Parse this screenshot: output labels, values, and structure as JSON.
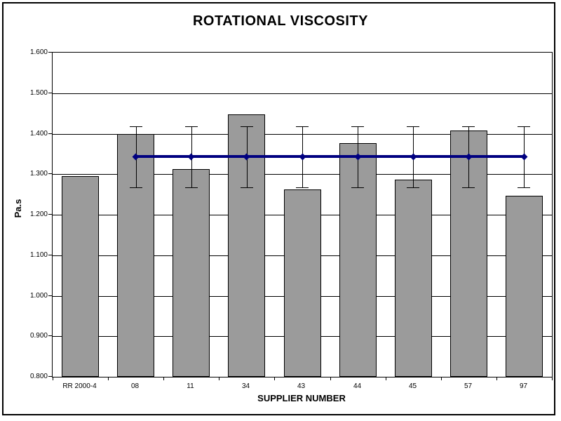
{
  "chart_data": {
    "type": "bar",
    "title": "ROTATIONAL VISCOSITY",
    "xlabel": "SUPPLIER NUMBER",
    "ylabel": "Pa.s",
    "categories": [
      "RR 2000-4",
      "08",
      "11",
      "34",
      "43",
      "44",
      "45",
      "57",
      "97"
    ],
    "values": [
      1.296,
      1.4,
      1.312,
      1.448,
      1.262,
      1.377,
      1.286,
      1.408,
      1.247
    ],
    "ylim": [
      0.8,
      1.6
    ],
    "y_ticks": [
      1.6,
      1.5,
      1.4,
      1.3,
      1.2,
      1.1,
      1.0,
      0.9,
      0.8
    ],
    "y_tick_labels": [
      "1.600",
      "1.500",
      "1.400",
      "1.300",
      "1.200",
      "1.100",
      "1.000",
      "0.900",
      "0.800"
    ],
    "grid": true,
    "legend": "none",
    "bar_color": "#9b9b9b",
    "bar_border_color": "#000000",
    "gridline_color": "#000000",
    "error_bars": {
      "categories": [
        "08",
        "11",
        "34",
        "43",
        "44",
        "45",
        "57",
        "97"
      ],
      "low": 1.267,
      "high": 1.418,
      "color": "#000000"
    },
    "reference_line": {
      "value": 1.343,
      "from_category": "08",
      "to_category": "97",
      "color": "#000080",
      "marker": "diamond"
    }
  }
}
